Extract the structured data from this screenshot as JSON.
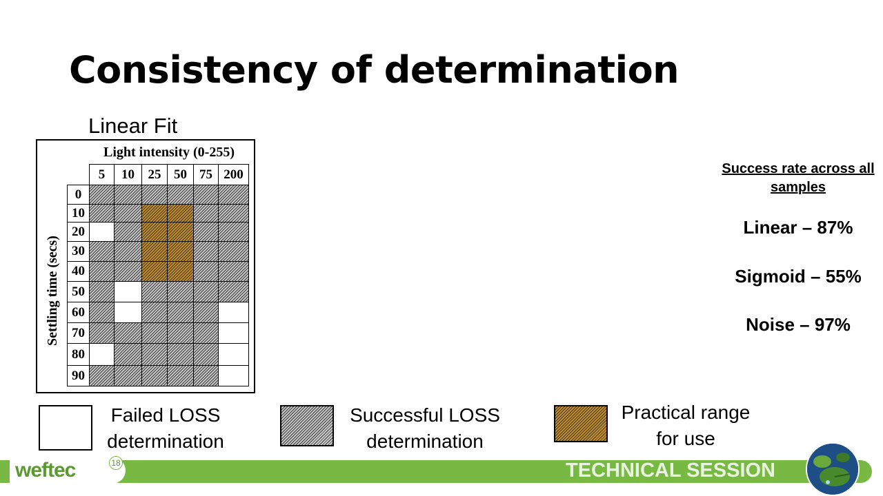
{
  "title": "Consistency of determination",
  "subtitle": "Linear Fit",
  "matrix": {
    "x_axis_label": "Light intensity (0-255)",
    "y_axis_label": "Settling time (secs)",
    "columns": [
      "5",
      "10",
      "25",
      "50",
      "75",
      "200"
    ],
    "rows": [
      "0",
      "10",
      "20",
      "30",
      "40",
      "50",
      "60",
      "70",
      "80",
      "90"
    ],
    "cells": [
      [
        "s",
        "s",
        "s",
        "s",
        "s",
        "s"
      ],
      [
        "s",
        "s",
        "p",
        "p",
        "s",
        "s"
      ],
      [
        "f",
        "s",
        "p",
        "p",
        "s",
        "s"
      ],
      [
        "s",
        "s",
        "p",
        "p",
        "s",
        "s"
      ],
      [
        "s",
        "s",
        "p",
        "p",
        "s",
        "s"
      ],
      [
        "s",
        "f",
        "s",
        "s",
        "s",
        "s"
      ],
      [
        "s",
        "f",
        "s",
        "s",
        "s",
        "f"
      ],
      [
        "s",
        "s",
        "s",
        "s",
        "s",
        "f"
      ],
      [
        "f",
        "s",
        "s",
        "s",
        "s",
        "f"
      ],
      [
        "s",
        "s",
        "s",
        "s",
        "s",
        "f"
      ]
    ],
    "colors": {
      "failed": "#ffffff",
      "successful": "#c8c8c8",
      "practical": "#c08f32"
    }
  },
  "legend": {
    "failed": "Failed LOSS determination",
    "successful": "Successful LOSS determination",
    "practical": "Practical range for use"
  },
  "stats": {
    "heading": "Success rate across all samples",
    "linear": "Linear – 87%",
    "sigmoid": "Sigmoid – 55%",
    "noise": "Noise – 97%"
  },
  "footer": {
    "logo": "weftec",
    "logo_badge": "18",
    "session": "TECHNICAL SESSION",
    "accent": "#78b943"
  }
}
